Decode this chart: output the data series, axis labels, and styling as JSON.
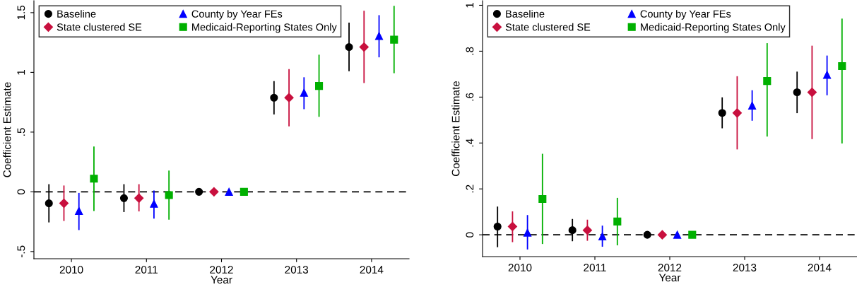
{
  "chart_data": [
    {
      "type": "scatter",
      "xlabel": "Year",
      "ylabel": "Coefficient Estimate",
      "xlim": [
        2009.5,
        2014.5
      ],
      "ylim": [
        -0.56,
        1.6
      ],
      "xticks": [
        2010,
        2011,
        2012,
        2013,
        2014
      ],
      "yticks": [
        {
          "value": -0.5,
          "label": "-.5"
        },
        0,
        {
          "value": 0.5,
          "label": ".5"
        },
        1,
        {
          "value": 1.5,
          "label": "1.5"
        }
      ],
      "legend": "top left",
      "grid": false,
      "ref_lines": [
        {
          "axis": "y",
          "value": 0,
          "color": "#000000",
          "line_style": "dashed"
        }
      ],
      "series": [
        {
          "name": "Baseline",
          "color": "#000000",
          "marker": "circle",
          "x": [
            2009.7,
            2010.7,
            2011.7,
            2012.7,
            2013.7
          ],
          "values": [
            -0.096,
            -0.053,
            0,
            0.788,
            1.212
          ],
          "errors": [
            [
              -0.256,
              0.064
            ],
            [
              -0.169,
              0.064
            ],
            null,
            [
              0.648,
              0.927
            ],
            [
              1.009,
              1.416
            ]
          ]
        },
        {
          "name": "State clustered SE",
          "color": "#c8103e",
          "marker": "diamond",
          "x": [
            2009.9,
            2010.9,
            2011.9,
            2012.9,
            2013.9
          ],
          "values": [
            -0.096,
            -0.053,
            0,
            0.788,
            1.212
          ],
          "errors": [
            [
              -0.244,
              0.053
            ],
            [
              -0.164,
              0.064
            ],
            null,
            [
              0.548,
              1.027
            ],
            [
              0.911,
              1.516
            ]
          ]
        },
        {
          "name": "County by Year FEs",
          "color": "#0000ff",
          "marker": "triangle",
          "x": [
            2010.1,
            2011.1,
            2012.1,
            2013.1,
            2014.1
          ],
          "values": [
            -0.16,
            -0.1,
            0,
            0.829,
            1.304
          ],
          "errors": [
            [
              -0.32,
              -0.009
            ],
            [
              -0.224,
              0.011
            ],
            null,
            [
              0.692,
              0.959
            ],
            [
              1.126,
              1.479
            ]
          ]
        },
        {
          "name": "Medicaid-Reporting States Only",
          "color": "#00b000",
          "marker": "square",
          "x": [
            2010.3,
            2011.3,
            2012.3,
            2013.3,
            2014.3
          ],
          "values": [
            0.11,
            -0.027,
            0,
            0.886,
            1.274
          ],
          "errors": [
            [
              -0.16,
              0.379
            ],
            [
              -0.233,
              0.178
            ],
            null,
            [
              0.628,
              1.148
            ],
            [
              0.993,
              1.557
            ]
          ]
        }
      ]
    },
    {
      "type": "scatter",
      "xlabel": "Year",
      "ylabel": "Coefficient Estimate",
      "xlim": [
        2009.5,
        2014.5
      ],
      "ylim": [
        -0.095,
        1.02
      ],
      "xticks": [
        2010,
        2011,
        2012,
        2013,
        2014
      ],
      "yticks": [
        0,
        {
          "value": 0.2,
          "label": ".2"
        },
        {
          "value": 0.4,
          "label": ".4"
        },
        {
          "value": 0.6,
          "label": ".6"
        },
        {
          "value": 0.8,
          "label": ".8"
        },
        1
      ],
      "legend": "top left",
      "grid": false,
      "ref_lines": [
        {
          "axis": "y",
          "value": 0,
          "color": "#000000",
          "line_style": "dashed"
        }
      ],
      "series": [
        {
          "name": "Baseline",
          "color": "#000000",
          "marker": "circle",
          "x": [
            2009.7,
            2010.7,
            2011.7,
            2012.7,
            2013.7
          ],
          "values": [
            0.036,
            0.02,
            0,
            0.531,
            0.621
          ],
          "errors": [
            [
              -0.054,
              0.123
            ],
            [
              -0.028,
              0.069
            ],
            null,
            [
              0.464,
              0.599
            ],
            [
              0.53,
              0.711
            ]
          ]
        },
        {
          "name": "State clustered SE",
          "color": "#c8103e",
          "marker": "diamond",
          "x": [
            2009.9,
            2010.9,
            2011.9,
            2012.9,
            2013.9
          ],
          "values": [
            0.036,
            0.02,
            0,
            0.531,
            0.621
          ],
          "errors": [
            [
              -0.032,
              0.102
            ],
            [
              -0.026,
              0.066
            ],
            null,
            [
              0.372,
              0.691
            ],
            [
              0.417,
              0.824
            ]
          ]
        },
        {
          "name": "County by Year FEs",
          "color": "#0000ff",
          "marker": "triangle",
          "x": [
            2010.1,
            2011.1,
            2012.1,
            2013.1,
            2014.1
          ],
          "values": [
            0.009,
            -0.007,
            0,
            0.563,
            0.697
          ],
          "errors": [
            [
              -0.064,
              0.086
            ],
            [
              -0.052,
              0.04
            ],
            null,
            [
              0.497,
              0.63
            ],
            [
              0.608,
              0.781
            ]
          ]
        },
        {
          "name": "Medicaid-Reporting States Only",
          "color": "#00b000",
          "marker": "square",
          "x": [
            2010.3,
            2011.3,
            2012.3,
            2013.3,
            2014.3
          ],
          "values": [
            0.156,
            0.058,
            0,
            0.67,
            0.735
          ],
          "errors": [
            [
              -0.04,
              0.353
            ],
            [
              -0.046,
              0.161
            ],
            null,
            [
              0.428,
              0.835
            ],
            [
              0.398,
              0.942
            ]
          ]
        }
      ]
    }
  ]
}
